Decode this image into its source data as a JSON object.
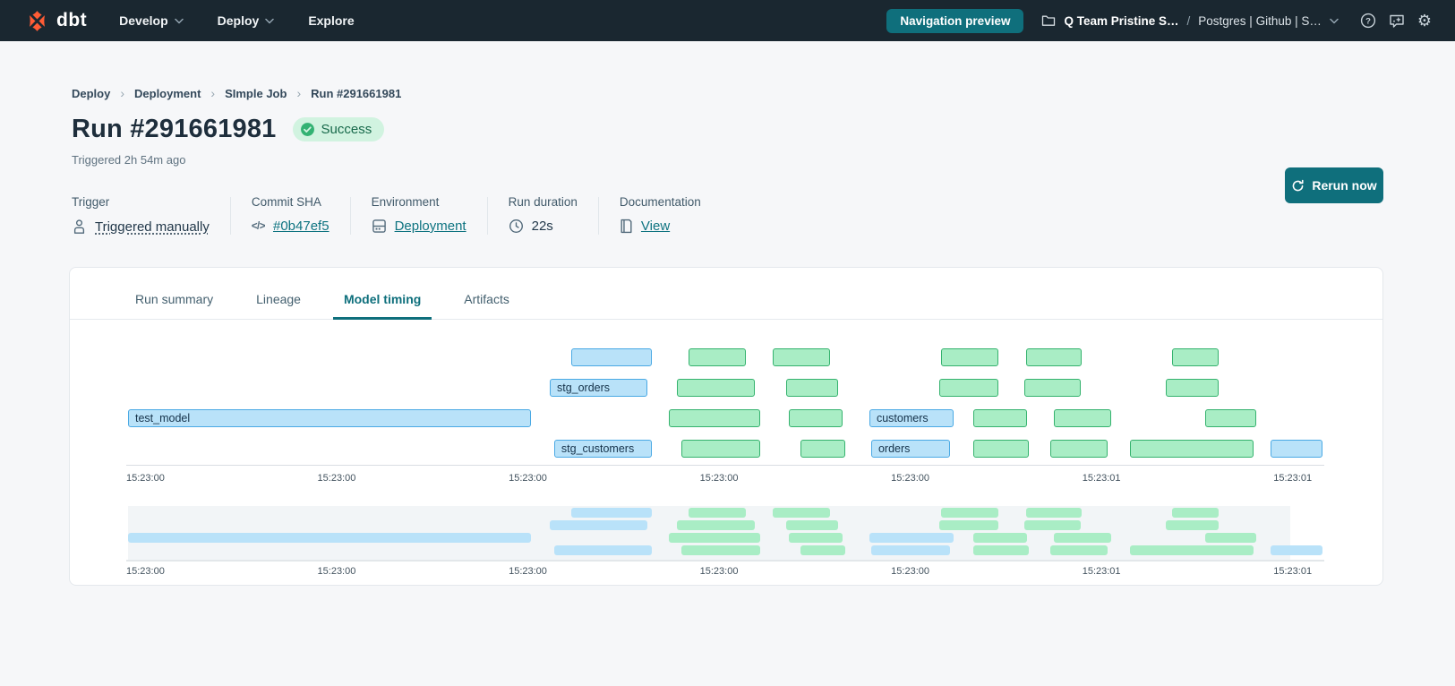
{
  "topnav": {
    "brand": "dbt",
    "menu": [
      {
        "label": "Develop",
        "chevron": true
      },
      {
        "label": "Deploy",
        "chevron": true
      },
      {
        "label": "Explore",
        "chevron": false
      }
    ],
    "preview_button": "Navigation preview",
    "project_name": "Q Team Pristine S…",
    "project_separator": "/",
    "environment_name": "Postgres | Github | S…",
    "icons": [
      "folder-icon",
      "chevron-down-icon",
      "help-icon",
      "feedback-icon",
      "gear-icon"
    ]
  },
  "breadcrumb": {
    "separator": "›",
    "items": [
      "Deploy",
      "Deployment",
      "SImple Job",
      "Run #291661981"
    ]
  },
  "header": {
    "title": "Run #291661981",
    "status": "Success",
    "triggered": "Triggered 2h 54m ago",
    "rerun_label": "Rerun now"
  },
  "meta": {
    "items": [
      {
        "label": "Trigger",
        "value": "Triggered manually",
        "icon": "user-icon",
        "style": "dotted"
      },
      {
        "label": "Commit SHA",
        "value": "#0b47ef5",
        "icon": "code-icon",
        "style": "link"
      },
      {
        "label": "Environment",
        "value": "Deployment",
        "icon": "database-icon",
        "style": "link"
      },
      {
        "label": "Run duration",
        "value": "22s",
        "icon": "clock-icon",
        "style": "plain"
      },
      {
        "label": "Documentation",
        "value": "View",
        "icon": "document-icon",
        "style": "link"
      }
    ]
  },
  "tabs": {
    "active_index": 2,
    "items": [
      "Run summary",
      "Lineage",
      "Model timing",
      "Artifacts"
    ]
  },
  "chart_data": {
    "type": "gantt",
    "title": "Model timing",
    "x_ticks": [
      {
        "label": "15:23:00",
        "pos": 0
      },
      {
        "label": "15:23:00",
        "pos": 15.96
      },
      {
        "label": "15:23:00",
        "pos": 31.92
      },
      {
        "label": "15:23:00",
        "pos": 47.88
      },
      {
        "label": "15:23:00",
        "pos": 63.84
      },
      {
        "label": "15:23:01",
        "pos": 79.8
      },
      {
        "label": "15:23:01",
        "pos": 95.76
      }
    ],
    "rows": [
      {
        "bars": [
          {
            "label": "",
            "color": "blue",
            "start": 37.15,
            "end": 43.87
          },
          {
            "label": "",
            "color": "green",
            "start": 46.94,
            "end": 51.72
          },
          {
            "label": "",
            "color": "green",
            "start": 53.96,
            "end": 58.74
          },
          {
            "label": "",
            "color": "green",
            "start": 68.01,
            "end": 72.8
          },
          {
            "label": "",
            "color": "green",
            "start": 75.11,
            "end": 79.75
          },
          {
            "label": "",
            "color": "green",
            "start": 87.29,
            "end": 91.18
          }
        ]
      },
      {
        "bars": [
          {
            "label": "stg_orders",
            "color": "blue",
            "start": 35.35,
            "end": 43.5
          },
          {
            "label": "",
            "color": "green",
            "start": 45.96,
            "end": 52.47
          },
          {
            "label": "",
            "color": "green",
            "start": 55.08,
            "end": 59.42
          },
          {
            "label": "",
            "color": "green",
            "start": 67.86,
            "end": 72.8
          },
          {
            "label": "",
            "color": "green",
            "start": 74.96,
            "end": 79.67
          },
          {
            "label": "",
            "color": "green",
            "start": 86.77,
            "end": 91.18
          }
        ]
      },
      {
        "bars": [
          {
            "label": "test_model",
            "color": "blue",
            "start": 0.15,
            "end": 33.78
          },
          {
            "label": "",
            "color": "green",
            "start": 45.29,
            "end": 52.91
          },
          {
            "label": "",
            "color": "green",
            "start": 55.31,
            "end": 59.79
          },
          {
            "label": "customers",
            "color": "blue",
            "start": 62.03,
            "end": 69.06
          },
          {
            "label": "",
            "color": "green",
            "start": 70.7,
            "end": 75.19
          },
          {
            "label": "",
            "color": "green",
            "start": 77.43,
            "end": 82.21
          },
          {
            "label": "",
            "color": "green",
            "start": 90.06,
            "end": 94.32
          }
        ]
      },
      {
        "bars": [
          {
            "label": "stg_customers",
            "color": "blue",
            "start": 35.72,
            "end": 43.87
          },
          {
            "label": "",
            "color": "green",
            "start": 46.34,
            "end": 52.91
          },
          {
            "label": "",
            "color": "green",
            "start": 56.28,
            "end": 60.01
          },
          {
            "label": "orders",
            "color": "blue",
            "start": 62.18,
            "end": 68.76
          },
          {
            "label": "",
            "color": "green",
            "start": 70.7,
            "end": 75.34
          },
          {
            "label": "",
            "color": "green",
            "start": 77.13,
            "end": 81.91
          },
          {
            "label": "",
            "color": "green",
            "start": 83.78,
            "end": 94.1
          },
          {
            "label": "",
            "color": "blue",
            "start": 95.52,
            "end": 99.85
          }
        ]
      }
    ],
    "minimap": {
      "brush_start": 0.15,
      "brush_end": 97.16
    }
  },
  "colors": {
    "nav_bg": "#1a2730",
    "brand_orange": "#ff5c35",
    "accent_teal": "#0f6f7c",
    "link_teal": "#0d7380",
    "success_bg": "#d1f3e0",
    "success_text": "#17694a",
    "bar_blue_fill": "#b9e2f9",
    "bar_blue_border": "#4aa9e4",
    "bar_green_fill": "#a9edc5",
    "bar_green_border": "#35b26e"
  }
}
